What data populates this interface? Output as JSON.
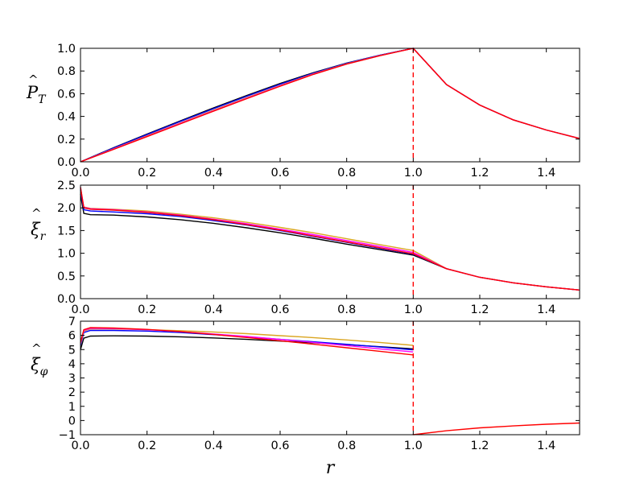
{
  "chart_data": [
    {
      "type": "line",
      "ylabel": "P̂_T",
      "xlim": [
        0,
        1.5
      ],
      "ylim": [
        0,
        1.0
      ],
      "xticks": [
        "0.0",
        "0.2",
        "0.4",
        "0.6",
        "0.8",
        "1.0",
        "1.2",
        "1.4"
      ],
      "yticks": [
        "0.0",
        "0.2",
        "0.4",
        "0.6",
        "0.8",
        "1.0"
      ],
      "x": [
        0,
        0.1,
        0.2,
        0.3,
        0.4,
        0.5,
        0.6,
        0.7,
        0.8,
        0.9,
        1.0,
        1.1,
        1.2,
        1.3,
        1.4,
        1.5
      ],
      "series": [
        {
          "color": "#000000",
          "values": [
            0,
            0.125,
            0.245,
            0.36,
            0.475,
            0.585,
            0.69,
            0.785,
            0.87,
            0.94,
            1.0,
            0.68,
            0.5,
            0.37,
            0.28,
            0.205
          ]
        },
        {
          "color": "#0000ff",
          "values": [
            0,
            0.122,
            0.24,
            0.355,
            0.468,
            0.578,
            0.684,
            0.781,
            0.868,
            0.939,
            1.0,
            0.68,
            0.5,
            0.37,
            0.28,
            0.205
          ]
        },
        {
          "color": "#daa520",
          "values": [
            0,
            0.115,
            0.23,
            0.343,
            0.455,
            0.565,
            0.673,
            0.775,
            0.864,
            0.937,
            1.0,
            0.68,
            0.5,
            0.37,
            0.28,
            0.205
          ]
        },
        {
          "color": "#ff00ff",
          "values": [
            0,
            0.112,
            0.225,
            0.338,
            0.45,
            0.56,
            0.669,
            0.772,
            0.862,
            0.936,
            1.0,
            0.68,
            0.5,
            0.37,
            0.28,
            0.205
          ]
        },
        {
          "color": "#ff0000",
          "values": [
            0,
            0.11,
            0.222,
            0.334,
            0.446,
            0.557,
            0.666,
            0.77,
            0.861,
            0.935,
            1.0,
            0.68,
            0.5,
            0.37,
            0.28,
            0.205
          ]
        }
      ],
      "vline": {
        "x": 1.0,
        "color": "#ff0000",
        "style": "dashed"
      }
    },
    {
      "type": "line",
      "ylabel": "ξ̂_r",
      "xlim": [
        0,
        1.5
      ],
      "ylim": [
        0,
        2.5
      ],
      "xticks": [
        "0.0",
        "0.2",
        "0.4",
        "0.6",
        "0.8",
        "1.0",
        "1.2",
        "1.4"
      ],
      "yticks": [
        "0.0",
        "0.5",
        "1.0",
        "1.5",
        "2.0",
        "2.5"
      ],
      "x": [
        0,
        0.01,
        0.03,
        0.1,
        0.2,
        0.3,
        0.4,
        0.5,
        0.6,
        0.7,
        0.8,
        0.9,
        1.0,
        1.1,
        1.2,
        1.3,
        1.4,
        1.5
      ],
      "series": [
        {
          "color": "#000000",
          "values": [
            2.3,
            1.88,
            1.85,
            1.84,
            1.8,
            1.74,
            1.66,
            1.56,
            1.45,
            1.33,
            1.2,
            1.08,
            0.96,
            0.66,
            0.47,
            0.35,
            0.26,
            0.19
          ]
        },
        {
          "color": "#0000ff",
          "values": [
            2.4,
            1.96,
            1.93,
            1.91,
            1.87,
            1.81,
            1.72,
            1.62,
            1.5,
            1.37,
            1.24,
            1.11,
            0.98,
            0.66,
            0.47,
            0.35,
            0.26,
            0.19
          ]
        },
        {
          "color": "#daa520",
          "values": [
            2.45,
            2.02,
            1.99,
            1.97,
            1.93,
            1.86,
            1.78,
            1.68,
            1.57,
            1.45,
            1.32,
            1.19,
            1.06,
            0.66,
            0.47,
            0.35,
            0.26,
            0.19
          ]
        },
        {
          "color": "#ff00ff",
          "values": [
            2.45,
            2.01,
            1.98,
            1.96,
            1.91,
            1.84,
            1.75,
            1.65,
            1.53,
            1.41,
            1.28,
            1.15,
            1.02,
            0.66,
            0.47,
            0.35,
            0.26,
            0.19
          ]
        },
        {
          "color": "#ff0000",
          "values": [
            2.45,
            2.0,
            1.97,
            1.95,
            1.9,
            1.83,
            1.74,
            1.63,
            1.51,
            1.38,
            1.25,
            1.12,
            0.99,
            0.66,
            0.47,
            0.35,
            0.26,
            0.19
          ]
        }
      ],
      "vline": {
        "x": 1.0,
        "color": "#ff0000",
        "style": "dashed"
      }
    },
    {
      "type": "line",
      "ylabel": "ξ̂_φ",
      "xlim": [
        0,
        1.5
      ],
      "ylim": [
        -1,
        7
      ],
      "xticks": [
        "0.0",
        "0.2",
        "0.4",
        "0.6",
        "0.8",
        "1.0",
        "1.2",
        "1.4"
      ],
      "yticks": [
        "−1",
        "0",
        "1",
        "2",
        "3",
        "4",
        "5",
        "6",
        "7"
      ],
      "x": [
        0,
        0.01,
        0.03,
        0.1,
        0.2,
        0.3,
        0.4,
        0.5,
        0.6,
        0.7,
        0.8,
        0.9,
        1.0
      ],
      "x_outer": [
        1.0,
        1.1,
        1.2,
        1.3,
        1.4,
        1.5
      ],
      "outer_values": [
        -1.0,
        -0.72,
        -0.52,
        -0.38,
        -0.26,
        -0.18
      ],
      "series": [
        {
          "color": "#000000",
          "values": [
            5.0,
            5.8,
            5.95,
            5.97,
            5.95,
            5.9,
            5.82,
            5.72,
            5.6,
            5.48,
            5.35,
            5.2,
            5.05
          ]
        },
        {
          "color": "#0000ff",
          "values": [
            5.3,
            6.2,
            6.35,
            6.35,
            6.3,
            6.2,
            6.05,
            5.9,
            5.72,
            5.55,
            5.37,
            5.18,
            4.98
          ]
        },
        {
          "color": "#daa520",
          "values": [
            5.4,
            6.3,
            6.45,
            6.45,
            6.4,
            6.33,
            6.24,
            6.12,
            5.98,
            5.84,
            5.68,
            5.5,
            5.3
          ]
        },
        {
          "color": "#ff00ff",
          "values": [
            5.45,
            6.35,
            6.5,
            6.48,
            6.4,
            6.27,
            6.1,
            5.92,
            5.72,
            5.5,
            5.28,
            5.05,
            4.83
          ]
        },
        {
          "color": "#ff0000",
          "values": [
            5.5,
            6.4,
            6.55,
            6.52,
            6.42,
            6.27,
            6.07,
            5.85,
            5.62,
            5.38,
            5.13,
            4.88,
            4.62
          ]
        }
      ],
      "vline": {
        "x": 1.0,
        "color": "#ff0000",
        "style": "dashed"
      }
    }
  ],
  "xlabel": "r"
}
